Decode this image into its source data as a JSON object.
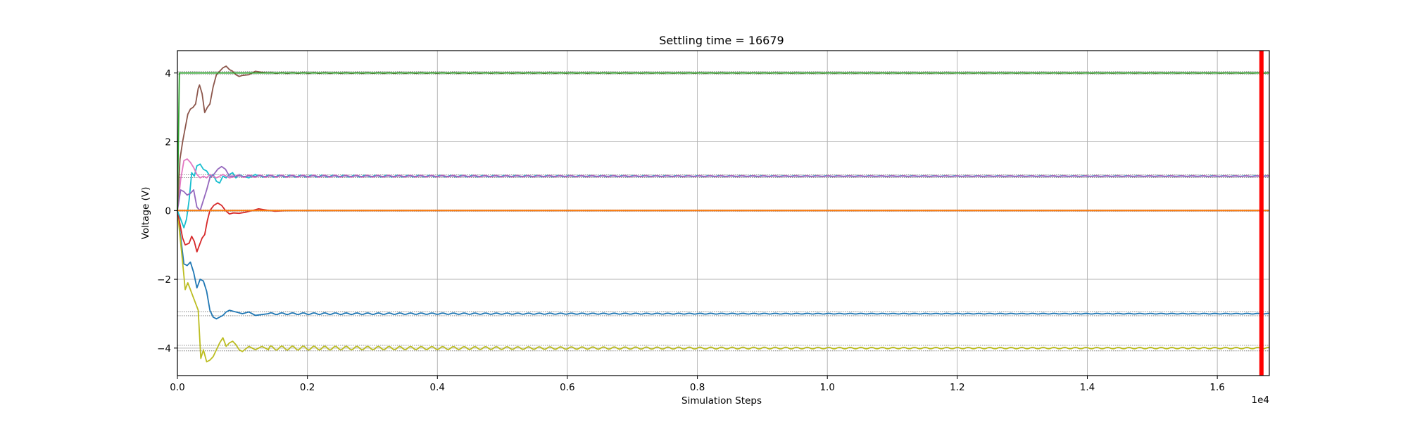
{
  "chart_data": {
    "type": "line",
    "title": "Settling time = 16679",
    "xlabel": "Simulation Steps",
    "ylabel": "Voltage (V)",
    "x_offset_label": "1e4",
    "xlim": [
      0,
      16800
    ],
    "ylim": [
      -4.8,
      4.65
    ],
    "x_ticks": [
      0,
      2000,
      4000,
      6000,
      8000,
      10000,
      12000,
      14000,
      16000
    ],
    "x_tick_labels": [
      "0.0",
      "0.2",
      "0.4",
      "0.6",
      "0.8",
      "1.0",
      "1.2",
      "1.4",
      "1.6"
    ],
    "y_ticks": [
      -4,
      -2,
      0,
      2,
      4
    ],
    "y_tick_labels": [
      "−4",
      "−2",
      "0",
      "2",
      "4"
    ],
    "grid": true,
    "settling_marker": {
      "x": 16679,
      "color": "#ff0000"
    },
    "reference_bands": [
      {
        "center": 4,
        "halfwidth": 0.04
      },
      {
        "center": 1,
        "halfwidth": 0.04
      },
      {
        "center": 0,
        "halfwidth": 0.02
      },
      {
        "center": -3,
        "halfwidth": 0.06
      },
      {
        "center": -4,
        "halfwidth": 0.08
      }
    ],
    "series": [
      {
        "color": "#1f77b4",
        "target": -3,
        "osc_amp": 0.025,
        "transient": [
          [
            0,
            0
          ],
          [
            100,
            -1.55
          ],
          [
            150,
            -1.6
          ],
          [
            200,
            -1.5
          ],
          [
            250,
            -1.8
          ],
          [
            300,
            -2.25
          ],
          [
            350,
            -2.0
          ],
          [
            400,
            -2.05
          ],
          [
            450,
            -2.35
          ],
          [
            500,
            -2.9
          ],
          [
            550,
            -3.1
          ],
          [
            600,
            -3.15
          ],
          [
            650,
            -3.1
          ],
          [
            700,
            -3.05
          ],
          [
            750,
            -2.95
          ],
          [
            800,
            -2.9
          ],
          [
            900,
            -2.95
          ],
          [
            1000,
            -3.0
          ],
          [
            1100,
            -2.95
          ],
          [
            1200,
            -3.05
          ],
          [
            1400,
            -3.0
          ]
        ]
      },
      {
        "color": "#bcbd22",
        "target": -4,
        "osc_amp": 0.06,
        "transient": [
          [
            0,
            0
          ],
          [
            80,
            -1.5
          ],
          [
            120,
            -2.3
          ],
          [
            160,
            -2.1
          ],
          [
            200,
            -2.3
          ],
          [
            260,
            -2.6
          ],
          [
            320,
            -2.9
          ],
          [
            360,
            -4.3
          ],
          [
            400,
            -4.05
          ],
          [
            450,
            -4.4
          ],
          [
            500,
            -4.35
          ],
          [
            550,
            -4.25
          ],
          [
            600,
            -4.05
          ],
          [
            650,
            -3.85
          ],
          [
            700,
            -3.7
          ],
          [
            750,
            -3.95
          ],
          [
            800,
            -3.85
          ],
          [
            850,
            -3.8
          ],
          [
            900,
            -3.9
          ],
          [
            950,
            -4.05
          ],
          [
            1000,
            -4.1
          ],
          [
            1100,
            -3.95
          ],
          [
            1200,
            -4.05
          ],
          [
            1300,
            -3.95
          ],
          [
            1400,
            -4.05
          ]
        ]
      },
      {
        "color": "#d62728",
        "target": 0,
        "osc_amp": 0.0,
        "transient": [
          [
            0,
            0
          ],
          [
            80,
            -0.8
          ],
          [
            120,
            -1.0
          ],
          [
            180,
            -0.95
          ],
          [
            220,
            -0.75
          ],
          [
            260,
            -0.9
          ],
          [
            300,
            -1.2
          ],
          [
            340,
            -1.0
          ],
          [
            380,
            -0.8
          ],
          [
            420,
            -0.7
          ],
          [
            460,
            -0.3
          ],
          [
            500,
            0.0
          ],
          [
            560,
            0.15
          ],
          [
            620,
            0.22
          ],
          [
            680,
            0.15
          ],
          [
            740,
            0.0
          ],
          [
            800,
            -0.1
          ],
          [
            860,
            -0.07
          ],
          [
            950,
            -0.08
          ],
          [
            1050,
            -0.05
          ],
          [
            1150,
            0.0
          ],
          [
            1250,
            0.05
          ],
          [
            1350,
            0.02
          ],
          [
            1500,
            -0.02
          ],
          [
            1700,
            0.0
          ]
        ]
      },
      {
        "color": "#17becf",
        "target": 1,
        "osc_amp": 0.03,
        "transient": [
          [
            0,
            0
          ],
          [
            60,
            -0.3
          ],
          [
            100,
            -0.5
          ],
          [
            140,
            -0.25
          ],
          [
            180,
            0.3
          ],
          [
            220,
            1.1
          ],
          [
            260,
            1.0
          ],
          [
            300,
            1.3
          ],
          [
            350,
            1.35
          ],
          [
            400,
            1.2
          ],
          [
            450,
            1.15
          ],
          [
            500,
            1.0
          ],
          [
            550,
            1.05
          ],
          [
            600,
            0.85
          ],
          [
            650,
            0.8
          ],
          [
            700,
            1.0
          ],
          [
            750,
            0.95
          ],
          [
            800,
            1.05
          ],
          [
            850,
            1.1
          ],
          [
            900,
            0.95
          ],
          [
            950,
            1.05
          ],
          [
            1000,
            1.0
          ],
          [
            1100,
            0.95
          ],
          [
            1200,
            1.05
          ]
        ]
      },
      {
        "color": "#e377c2",
        "target": 1,
        "osc_amp": 0.035,
        "transient": [
          [
            0,
            0
          ],
          [
            50,
            0.9
          ],
          [
            100,
            1.45
          ],
          [
            150,
            1.5
          ],
          [
            200,
            1.4
          ],
          [
            250,
            1.25
          ],
          [
            300,
            1.05
          ],
          [
            350,
            0.95
          ],
          [
            400,
            1.0
          ],
          [
            450,
            0.95
          ],
          [
            500,
            1.05
          ],
          [
            600,
            0.95
          ],
          [
            700,
            1.05
          ],
          [
            800,
            0.95
          ],
          [
            900,
            1.0
          ]
        ]
      },
      {
        "color": "#9467bd",
        "target": 1,
        "osc_amp": 0.01,
        "transient": [
          [
            0,
            0
          ],
          [
            50,
            0.6
          ],
          [
            100,
            0.55
          ],
          [
            150,
            0.45
          ],
          [
            200,
            0.5
          ],
          [
            250,
            0.6
          ],
          [
            300,
            0.1
          ],
          [
            350,
            0.0
          ],
          [
            400,
            0.3
          ],
          [
            450,
            0.6
          ],
          [
            500,
            0.95
          ],
          [
            560,
            1.05
          ],
          [
            620,
            1.2
          ],
          [
            680,
            1.28
          ],
          [
            740,
            1.2
          ],
          [
            800,
            1.0
          ],
          [
            900,
            1.0
          ]
        ]
      },
      {
        "color": "#8c564b",
        "target": 4,
        "osc_amp": 0.01,
        "transient": [
          [
            0,
            0
          ],
          [
            40,
            1.5
          ],
          [
            80,
            2.0
          ],
          [
            120,
            2.4
          ],
          [
            160,
            2.8
          ],
          [
            200,
            2.95
          ],
          [
            240,
            3.0
          ],
          [
            280,
            3.1
          ],
          [
            320,
            3.55
          ],
          [
            340,
            3.65
          ],
          [
            380,
            3.4
          ],
          [
            420,
            2.85
          ],
          [
            460,
            3.0
          ],
          [
            500,
            3.1
          ],
          [
            550,
            3.6
          ],
          [
            600,
            3.95
          ],
          [
            650,
            4.05
          ],
          [
            700,
            4.15
          ],
          [
            750,
            4.2
          ],
          [
            800,
            4.1
          ],
          [
            850,
            4.05
          ],
          [
            900,
            3.95
          ],
          [
            950,
            3.9
          ],
          [
            1000,
            3.93
          ],
          [
            1100,
            3.95
          ],
          [
            1200,
            4.05
          ],
          [
            1300,
            4.02
          ],
          [
            1400,
            4.0
          ]
        ]
      },
      {
        "color": "#2ca02c",
        "target": 4,
        "osc_amp": 0.0,
        "transient": [
          [
            0,
            0
          ],
          [
            30,
            4.0
          ]
        ]
      },
      {
        "color": "#7f7f7f",
        "target": 0,
        "osc_amp": 0.0,
        "transient": [
          [
            0,
            0
          ]
        ]
      },
      {
        "color": "#ff7f0e",
        "target": 0,
        "osc_amp": 0.0,
        "transient": [
          [
            0,
            0
          ]
        ]
      }
    ]
  }
}
